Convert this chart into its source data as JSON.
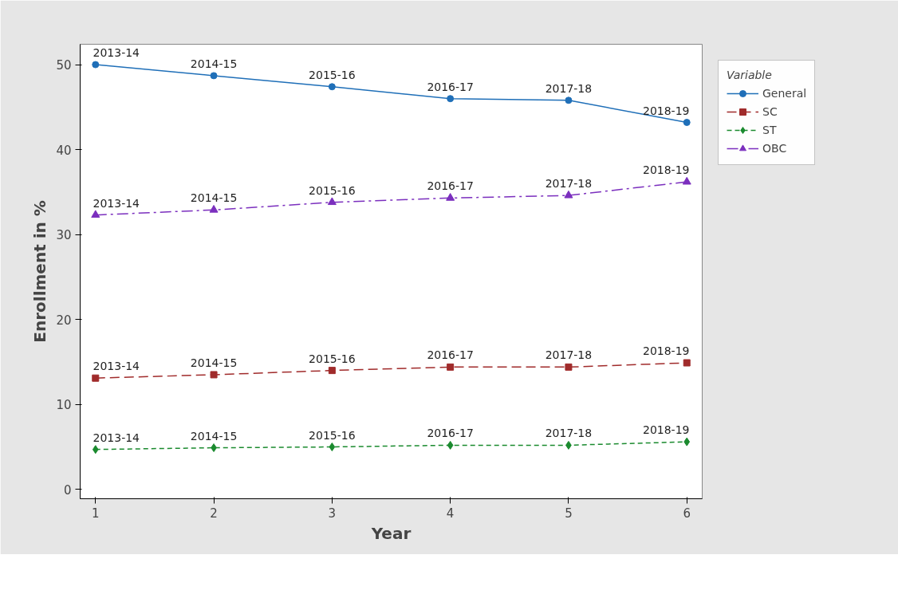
{
  "chart_data": {
    "type": "line",
    "xlabel": "Year",
    "ylabel": "Enrollment in %",
    "legend_title": "Variable",
    "x": [
      1,
      2,
      3,
      4,
      5,
      6
    ],
    "series": [
      {
        "name": "General",
        "color": "#1f6fb8",
        "marker": "circle",
        "line_style": "solid",
        "values": [
          50.0,
          48.7,
          47.4,
          46.0,
          45.8,
          43.2
        ]
      },
      {
        "name": "SC",
        "color": "#a02b2b",
        "marker": "square",
        "line_style": "dashed",
        "values": [
          13.1,
          13.5,
          14.0,
          14.4,
          14.4,
          14.9
        ]
      },
      {
        "name": "ST",
        "color": "#1a8a2e",
        "marker": "diamond",
        "line_style": "dotted",
        "values": [
          4.7,
          4.9,
          5.0,
          5.2,
          5.2,
          5.6
        ]
      },
      {
        "name": "OBC",
        "color": "#7b2fbe",
        "marker": "triangle",
        "line_style": "dashdot",
        "values": [
          32.3,
          32.9,
          33.8,
          34.3,
          34.6,
          36.2
        ]
      }
    ],
    "annotations": [
      {
        "text": "2013-14",
        "x": 1,
        "y": 50.0
      },
      {
        "text": "2014-15",
        "x": 2,
        "y": 48.7
      },
      {
        "text": "2015-16",
        "x": 3,
        "y": 47.4
      },
      {
        "text": "2016-17",
        "x": 4,
        "y": 46.0
      },
      {
        "text": "2017-18",
        "x": 5,
        "y": 45.8
      },
      {
        "text": "2018-19",
        "x": 6,
        "y": 43.2
      },
      {
        "text": "2013-14",
        "x": 1,
        "y": 13.1
      },
      {
        "text": "2014-15",
        "x": 2,
        "y": 13.5
      },
      {
        "text": "2015-16",
        "x": 3,
        "y": 14.0
      },
      {
        "text": "2016-17",
        "x": 4,
        "y": 14.4
      },
      {
        "text": "2017-18",
        "x": 5,
        "y": 14.4
      },
      {
        "text": "2018-19",
        "x": 6,
        "y": 14.9
      },
      {
        "text": "2013-14",
        "x": 1,
        "y": 4.7
      },
      {
        "text": "2014-15",
        "x": 2,
        "y": 4.9
      },
      {
        "text": "2015-16",
        "x": 3,
        "y": 5.0
      },
      {
        "text": "2016-17",
        "x": 4,
        "y": 5.2
      },
      {
        "text": "2017-18",
        "x": 5,
        "y": 5.2
      },
      {
        "text": "2018-19",
        "x": 6,
        "y": 5.6
      },
      {
        "text": "2013-14",
        "x": 1,
        "y": 32.3
      },
      {
        "text": "2014-15",
        "x": 2,
        "y": 32.9
      },
      {
        "text": "2015-16",
        "x": 3,
        "y": 33.8
      },
      {
        "text": "2016-17",
        "x": 4,
        "y": 34.3
      },
      {
        "text": "2017-18",
        "x": 5,
        "y": 34.6
      },
      {
        "text": "2018-19",
        "x": 6,
        "y": 36.2
      }
    ],
    "xlim": [
      0.87,
      6.13
    ],
    "ylim": [
      -1.1,
      52.4
    ],
    "xticks": [
      1,
      2,
      3,
      4,
      5,
      6
    ],
    "yticks": [
      0,
      10,
      20,
      30,
      40,
      50
    ],
    "grid": false,
    "legend": "top right"
  }
}
